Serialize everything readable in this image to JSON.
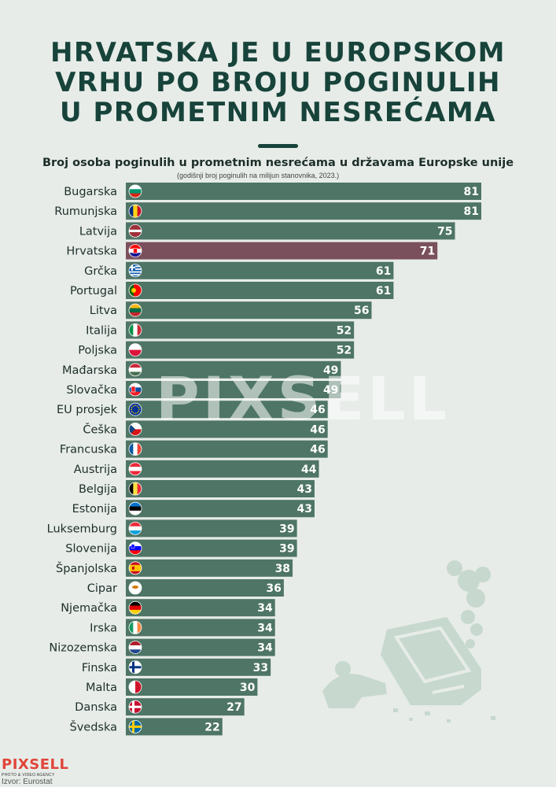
{
  "title_lines": [
    "HRVATSKA JE U EUROPSKOM",
    "VRHU PO BROJU POGINULIH",
    "U PROMETNIM NESREĆAMA"
  ],
  "subtitle": "Broj osoba poginulih u prometnim nesrećama u državama Europske unije",
  "note": "(godišnji broj poginulih na milijun stanovnika, 2023.)",
  "watermark": "PIXSELL",
  "logo": {
    "name": "PIXSELL",
    "tagline": "PHOTO & VIDEO AGENCY"
  },
  "source": "Izvor: Eurostat",
  "colors": {
    "bar": "#4e7565",
    "highlight": "#7a505c",
    "label_text": "#ffffff",
    "title": "#17433a"
  },
  "chart_data": {
    "type": "bar",
    "orientation": "horizontal",
    "title": "Broj osoba poginulih u prometnim nesrećama u državama Europske unije",
    "categories": [
      "Bugarska",
      "Rumunjska",
      "Latvija",
      "Hrvatska",
      "Grčka",
      "Portugal",
      "Litva",
      "Italija",
      "Poljska",
      "Mađarska",
      "Slovačka",
      "EU prosjek",
      "Češka",
      "Francuska",
      "Austrija",
      "Belgija",
      "Estonija",
      "Luksemburg",
      "Slovenija",
      "Španjolska",
      "Cipar",
      "Njemačka",
      "Irska",
      "Nizozemska",
      "Finska",
      "Malta",
      "Danska",
      "Švedska"
    ],
    "values": [
      81,
      81,
      75,
      71,
      61,
      61,
      56,
      52,
      52,
      49,
      49,
      46,
      46,
      46,
      44,
      43,
      43,
      39,
      39,
      38,
      36,
      34,
      34,
      34,
      33,
      30,
      27,
      22
    ],
    "highlight": "Hrvatska",
    "flags": [
      "flag-bulgaria",
      "flag-romania",
      "flag-latvia",
      "flag-croatia",
      "flag-greece",
      "flag-portugal",
      "flag-lithuania",
      "flag-italy",
      "flag-poland",
      "flag-hungary",
      "flag-slovakia",
      "flag-eu",
      "flag-czechia",
      "flag-france",
      "flag-austria",
      "flag-belgium",
      "flag-estonia",
      "flag-luxembourg",
      "flag-slovenia",
      "flag-spain",
      "flag-cyprus",
      "flag-germany",
      "flag-ireland",
      "flag-netherlands",
      "flag-finland",
      "flag-malta",
      "flag-denmark",
      "flag-sweden"
    ],
    "xlim": [
      0,
      81
    ],
    "grid": false,
    "legend": "none"
  }
}
